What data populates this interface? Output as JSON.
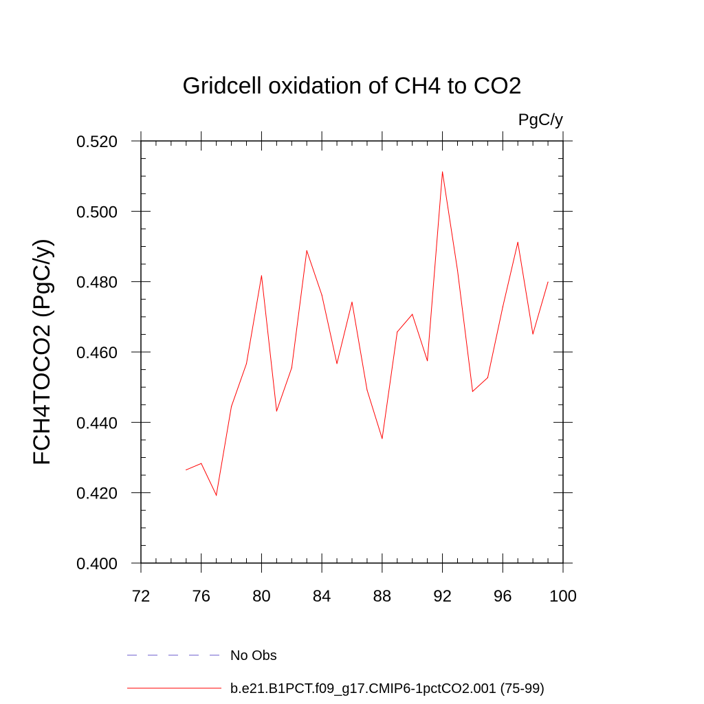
{
  "chart_data": {
    "type": "line",
    "title": "Gridcell oxidation of CH4 to CO2",
    "units": "PgC/y",
    "xlabel": "",
    "ylabel": "FCH4TOCO2  (PgC/y)",
    "xlim": [
      72,
      100
    ],
    "ylim": [
      0.4,
      0.52
    ],
    "xticks": [
      72,
      76,
      80,
      84,
      88,
      92,
      96,
      100
    ],
    "xtick_labels": [
      "72",
      "76",
      "80",
      "84",
      "88",
      "92",
      "96",
      "100"
    ],
    "yticks": [
      0.4,
      0.42,
      0.44,
      0.46,
      0.48,
      0.5,
      0.52
    ],
    "ytick_labels": [
      "0.400",
      "0.420",
      "0.440",
      "0.460",
      "0.480",
      "0.500",
      "0.520"
    ],
    "series": [
      {
        "name": "b.e21.B1PCT.f09_g17.CMIP6-1pctCO2.001 (75-99)",
        "color": "#ff0000",
        "x": [
          75,
          76,
          77,
          78,
          79,
          80,
          81,
          82,
          83,
          84,
          85,
          86,
          87,
          88,
          89,
          90,
          91,
          92,
          93,
          94,
          95,
          96,
          97,
          98,
          99
        ],
        "y": [
          0.4265,
          0.4283,
          0.4193,
          0.4445,
          0.4567,
          0.4817,
          0.4432,
          0.4555,
          0.4888,
          0.4762,
          0.4567,
          0.4742,
          0.4492,
          0.4354,
          0.4657,
          0.4707,
          0.4575,
          0.5112,
          0.4832,
          0.4488,
          0.4527,
          0.4728,
          0.4912,
          0.4651,
          0.4799
        ]
      }
    ],
    "legend": [
      {
        "label": "No Obs",
        "style": "dashed",
        "color": "#6a5acd"
      },
      {
        "label": "b.e21.B1PCT.f09_g17.CMIP6-1pctCO2.001 (75-99)",
        "style": "solid",
        "color": "#ff0000"
      }
    ]
  }
}
